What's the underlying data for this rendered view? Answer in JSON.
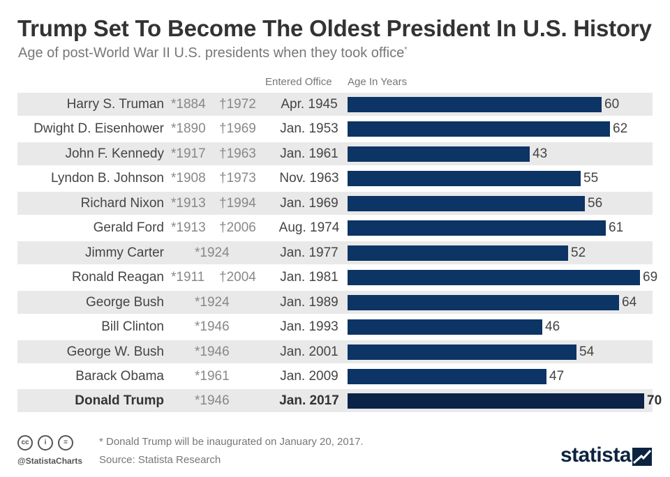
{
  "title": "Trump Set To Become The Oldest President In U.S. History",
  "subtitle": "Age of post-World War II U.S. presidents when they took office",
  "subtitle_marker": "*",
  "columns": {
    "entered": "Entered Office",
    "age": "Age In Years"
  },
  "colors": {
    "bar": "#0c3464",
    "bar_highlight": "#0a2347",
    "row_shade": "#e9e9e9"
  },
  "chart_data": {
    "type": "bar",
    "orientation": "horizontal",
    "xlim": [
      0,
      70
    ],
    "categories": [
      "Harry S. Truman",
      "Dwight D. Eisenhower",
      "John F. Kennedy",
      "Lyndon B. Johnson",
      "Richard Nixon",
      "Gerald Ford",
      "Jimmy Carter",
      "Ronald Reagan",
      "George Bush",
      "Bill Clinton",
      "George W. Bush",
      "Barack Obama",
      "Donald Trump"
    ],
    "values": [
      60,
      62,
      43,
      55,
      56,
      61,
      52,
      69,
      64,
      46,
      54,
      47,
      70
    ],
    "rows": [
      {
        "name": "Harry S. Truman",
        "born": "*1884",
        "died": "†1972",
        "entered": "Apr. 1945",
        "age": "60"
      },
      {
        "name": "Dwight D. Eisenhower",
        "born": "*1890",
        "died": "†1969",
        "entered": "Jan. 1953",
        "age": "62"
      },
      {
        "name": "John F. Kennedy",
        "born": "*1917",
        "died": "†1963",
        "entered": "Jan. 1961",
        "age": "43"
      },
      {
        "name": "Lyndon B. Johnson",
        "born": "*1908",
        "died": "†1973",
        "entered": "Nov. 1963",
        "age": "55"
      },
      {
        "name": "Richard Nixon",
        "born": "*1913",
        "died": "†1994",
        "entered": "Jan. 1969",
        "age": "56"
      },
      {
        "name": "Gerald Ford",
        "born": "*1913",
        "died": "†2006",
        "entered": "Aug. 1974",
        "age": "61"
      },
      {
        "name": "Jimmy Carter",
        "born": "*1924",
        "died": "",
        "entered": "Jan. 1977",
        "age": "52"
      },
      {
        "name": "Ronald Reagan",
        "born": "*1911",
        "died": "†2004",
        "entered": "Jan. 1981",
        "age": "69"
      },
      {
        "name": "George Bush",
        "born": "*1924",
        "died": "",
        "entered": "Jan. 1989",
        "age": "64"
      },
      {
        "name": "Bill Clinton",
        "born": "*1946",
        "died": "",
        "entered": "Jan. 1993",
        "age": "46"
      },
      {
        "name": "George W. Bush",
        "born": "*1946",
        "died": "",
        "entered": "Jan. 2001",
        "age": "54"
      },
      {
        "name": "Barack Obama",
        "born": "*1961",
        "died": "",
        "entered": "Jan. 2009",
        "age": "47"
      },
      {
        "name": "Donald Trump",
        "born": "*1946",
        "died": "",
        "entered": "Jan. 2017",
        "age": "70",
        "highlight": true
      }
    ]
  },
  "footnote": "* Donald Trump will be inaugurated on January 20, 2017.",
  "source": "Source: Statista Research",
  "handle": "@StatistaCharts",
  "logo": "statista",
  "license_icons": [
    "cc-icon",
    "attribution-icon",
    "no-derivatives-icon"
  ]
}
